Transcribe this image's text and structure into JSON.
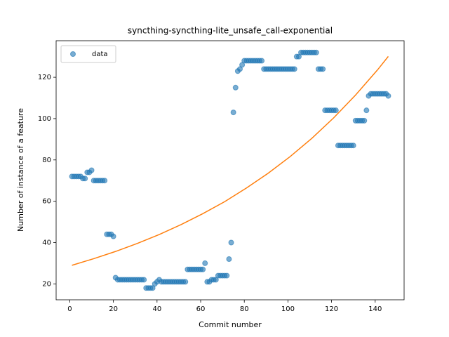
{
  "chart_data": {
    "type": "scatter",
    "title": "syncthing-syncthing-lite_unsafe_call-exponential",
    "xlabel": "Commit number",
    "ylabel": "Number of instance of a feature",
    "legend": "upper left",
    "xlim": [
      -6.25,
      153.25
    ],
    "ylim": [
      12.3,
      137.7
    ],
    "xticks": [
      0,
      20,
      40,
      60,
      80,
      100,
      120,
      140
    ],
    "yticks": [
      20,
      40,
      60,
      80,
      100,
      120
    ],
    "series": [
      {
        "name": "data",
        "type": "scatter",
        "color": "#1f77b4",
        "x": [
          1,
          2,
          3,
          4,
          5,
          6,
          7,
          8,
          9,
          10,
          11,
          12,
          13,
          14,
          15,
          16,
          17,
          18,
          19,
          20,
          21,
          22,
          23,
          24,
          25,
          26,
          27,
          28,
          29,
          30,
          31,
          32,
          33,
          34,
          35,
          36,
          37,
          38,
          39,
          40,
          41,
          42,
          43,
          44,
          45,
          46,
          47,
          48,
          49,
          50,
          51,
          52,
          53,
          54,
          55,
          56,
          57,
          58,
          59,
          60,
          61,
          62,
          63,
          64,
          65,
          66,
          67,
          68,
          69,
          70,
          71,
          72,
          73,
          74,
          75,
          76,
          77,
          78,
          79,
          80,
          81,
          82,
          83,
          84,
          85,
          86,
          87,
          88,
          89,
          90,
          91,
          92,
          93,
          94,
          95,
          96,
          97,
          98,
          99,
          100,
          101,
          102,
          103,
          104,
          105,
          106,
          107,
          108,
          109,
          110,
          111,
          112,
          113,
          114,
          115,
          116,
          117,
          118,
          119,
          120,
          121,
          122,
          123,
          124,
          125,
          126,
          127,
          128,
          129,
          130,
          131,
          132,
          133,
          134,
          135,
          136,
          137,
          138,
          139,
          140,
          141,
          142,
          143,
          144,
          145,
          146
        ],
        "values": [
          72,
          72,
          72,
          72,
          72,
          71,
          71,
          74,
          74,
          75,
          70,
          70,
          70,
          70,
          70,
          70,
          44,
          44,
          44,
          43,
          23,
          22,
          22,
          22,
          22,
          22,
          22,
          22,
          22,
          22,
          22,
          22,
          22,
          22,
          18,
          18,
          18,
          18,
          20,
          21,
          22,
          21,
          21,
          21,
          21,
          21,
          21,
          21,
          21,
          21,
          21,
          21,
          21,
          27,
          27,
          27,
          27,
          27,
          27,
          27,
          27,
          30,
          21,
          21,
          22,
          22,
          22,
          24,
          24,
          24,
          24,
          24,
          32,
          40,
          103,
          115,
          123,
          124,
          126,
          128,
          128,
          128,
          128,
          128,
          128,
          128,
          128,
          128,
          124,
          124,
          124,
          124,
          124,
          124,
          124,
          124,
          124,
          124,
          124,
          124,
          124,
          124,
          124,
          130,
          130,
          132,
          132,
          132,
          132,
          132,
          132,
          132,
          132,
          124,
          124,
          124,
          104,
          104,
          104,
          104,
          104,
          104,
          87,
          87,
          87,
          87,
          87,
          87,
          87,
          87,
          99,
          99,
          99,
          99,
          99,
          104,
          111,
          112,
          112,
          112,
          112,
          112,
          112,
          112,
          112,
          111
        ]
      },
      {
        "type": "line",
        "color": "#ff7f0e",
        "x": [
          1,
          11,
          21,
          31,
          41,
          51,
          61,
          71,
          81,
          91,
          101,
          111,
          121,
          131,
          141,
          146
        ],
        "values": [
          29.0,
          32.2,
          35.7,
          39.6,
          43.9,
          48.7,
          54.0,
          59.8,
          66.4,
          73.6,
          81.6,
          90.5,
          100.4,
          111.4,
          123.5,
          130.1
        ]
      }
    ]
  }
}
